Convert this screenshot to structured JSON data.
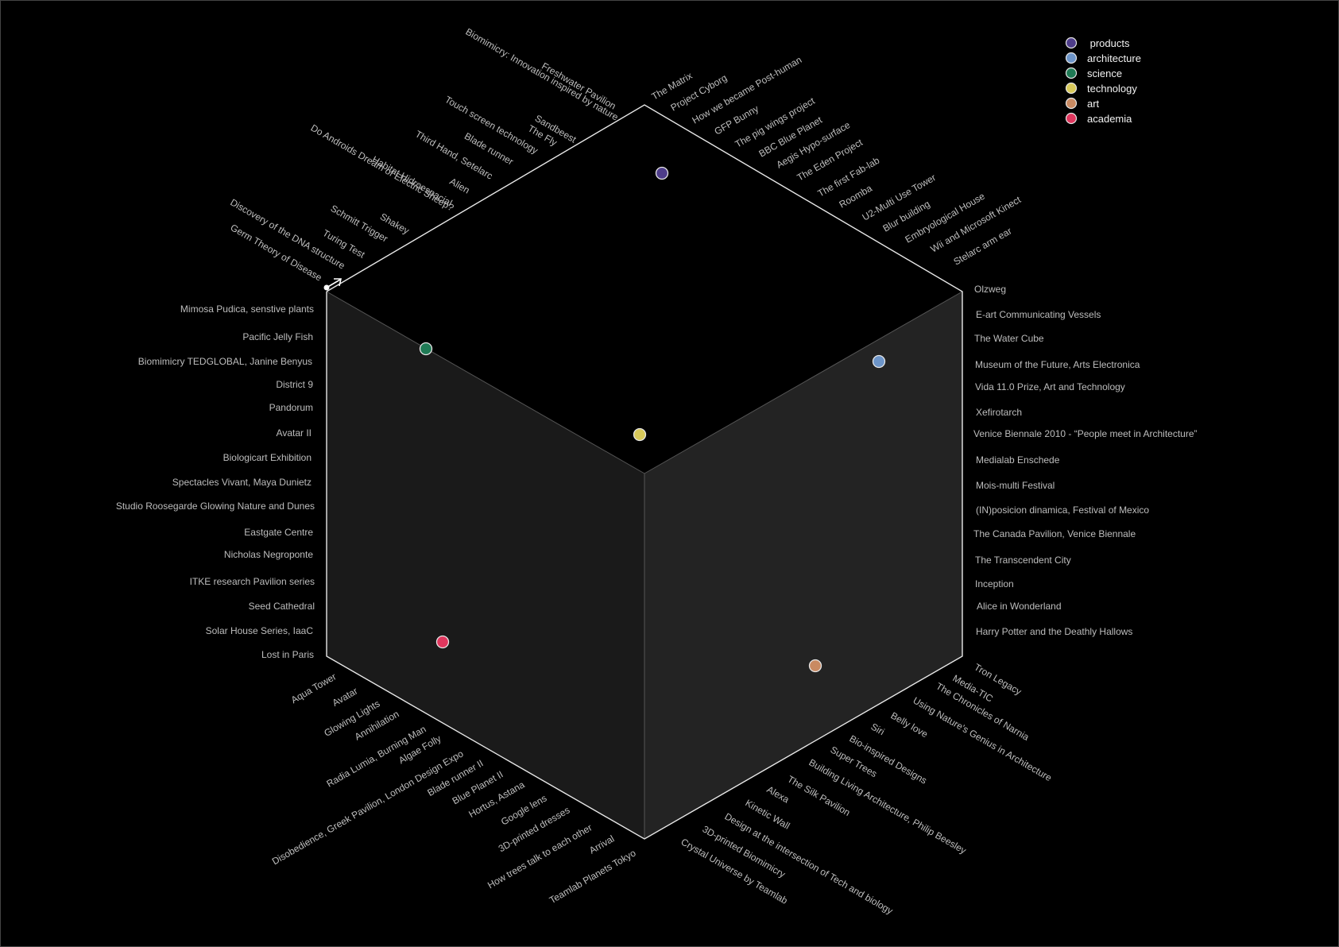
{
  "legend": [
    {
      "label": " products",
      "color": "#4e3d8a"
    },
    {
      "label": "architecture",
      "color": "#6d95c9"
    },
    {
      "label": "science",
      "color": "#1f7a55"
    },
    {
      "label": "technology",
      "color": "#d8c95a"
    },
    {
      "label": "art",
      "color": "#c98a62"
    },
    {
      "label": "academia",
      "color": "#e0375e"
    }
  ],
  "markers": [
    {
      "name": "products-marker",
      "color": "#4e3d8a"
    },
    {
      "name": "architecture-marker",
      "color": "#6d95c9"
    },
    {
      "name": "science-marker",
      "color": "#1f7a55"
    },
    {
      "name": "technology-marker",
      "color": "#d8c95a"
    },
    {
      "name": "art-marker",
      "color": "#c98a62"
    },
    {
      "name": "academia-marker",
      "color": "#e0375e"
    }
  ],
  "labels": {
    "top_left": [
      "Biomimicry: Innovation inspired by nature",
      "Freshwater Pavilion",
      "Sandbeest",
      "Touch screen technology",
      "The Fly",
      "Blade runner",
      "Third Hand, Setelarc",
      "Do Androids Dream of Electric Sheep?",
      "Habitat Hidroespacial",
      "Alien",
      "Shakey",
      "Schmitt Trigger",
      "Turing Test",
      "Discovery of the DNA structure",
      "Germ Theory of Disease"
    ],
    "top_right": [
      "The Matrix",
      "Project Cyborg",
      "How we became Post-human",
      "GFP Bunny",
      "The pig wings project",
      "BBC Blue Planet",
      "Aegis Hypo-surface",
      "The Eden Project",
      "The first Fab-lab",
      "Roomba",
      "U2-Multi Use Tower",
      "Blur building",
      "Embryological House",
      "Wii and Microsoft Kinect",
      "Stelarc arm ear"
    ],
    "left": [
      "Mimosa Pudica, senstive plants",
      "Pacific Jelly Fish",
      "Biomimicry TEDGLOBAL, Janine Benyus",
      "District 9",
      "Pandorum",
      "Avatar II",
      "Biologicart Exhibition",
      "Spectacles Vivant, Maya Dunietz",
      "Studio Roosegarde Glowing Nature and Dunes",
      "Eastgate Centre",
      "Nicholas Negroponte",
      "ITKE research Pavilion series",
      "Seed Cathedral",
      "Solar House Series, IaaC",
      "Lost in Paris"
    ],
    "right": [
      "Olzweg",
      "E-art Communicating Vessels",
      "The Water Cube",
      "Museum of the Future, Arts Electronica",
      "Vida 11.0 Prize, Art and Technology",
      "Xefirotarch",
      "Venice Biennale 2010 - “People meet in Architecture”",
      "Medialab Enschede",
      "Mois-multi Festival",
      "(IN)posicion dinamica, Festival of Mexico",
      "The Canada Pavilion, Venice Biennale",
      "The Transcendent City",
      "Inception",
      "Alice in Wonderland",
      "Harry Potter and the Deathly Hallows"
    ],
    "bottom_left": [
      "Aqua Tower",
      "Avatar",
      "Glowing Lights",
      "Annihilation",
      "Radia Lumia, Burning Man",
      "Algae Folly",
      "Disobedience, Greek Pavilion, London Design Expo",
      "Blade runner II",
      "Blue Planet II",
      "Hortus, Astana",
      "Google lens",
      "3D-printed dresses",
      "How trees talk to each other",
      "Arrival",
      "Teamlab Planets Tokyo"
    ],
    "bottom_right": [
      "Tron Legacy",
      "Media-TIC",
      "The Chronicles of Narnia",
      "Using Nature's Genius in Architecture",
      "Belly love",
      "Siri",
      "Bio-inspired Designs",
      "Super Trees",
      "Building Living Architecture, Philip Beesley",
      "The Silk Pavilion",
      "Alexa",
      "Kinetic Wall",
      "Design at the intersection of Tech  and biology",
      "3D-printed Biomimicry",
      "Crystal Universe by Teamlab"
    ]
  }
}
